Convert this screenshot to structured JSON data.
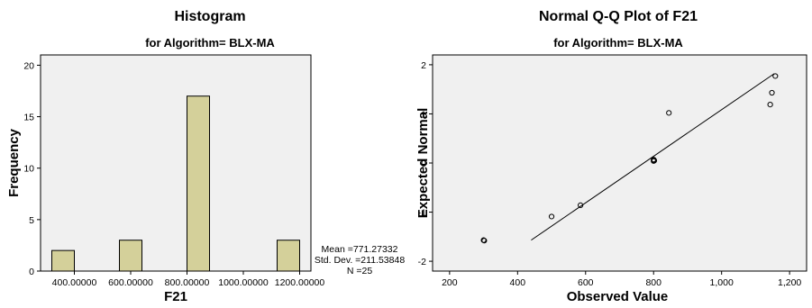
{
  "chart_data": [
    {
      "type": "bar",
      "title": "Histogram",
      "subtitle": "for Algorithm= BLX-MA",
      "xlabel": "F21",
      "ylabel": "Frequency",
      "bins": [
        {
          "from": 320,
          "to": 400,
          "count": 2
        },
        {
          "from": 400,
          "to": 480,
          "count": 0
        },
        {
          "from": 480,
          "to": 560,
          "count": 0
        },
        {
          "from": 560,
          "to": 640,
          "count": 3
        },
        {
          "from": 640,
          "to": 720,
          "count": 0
        },
        {
          "from": 720,
          "to": 800,
          "count": 0
        },
        {
          "from": 800,
          "to": 880,
          "count": 17
        },
        {
          "from": 880,
          "to": 960,
          "count": 0
        },
        {
          "from": 960,
          "to": 1040,
          "count": 0
        },
        {
          "from": 1040,
          "to": 1120,
          "count": 0
        },
        {
          "from": 1120,
          "to": 1200,
          "count": 3
        }
      ],
      "xlim": [
        280,
        1240
      ],
      "ylim": [
        0,
        21
      ],
      "x_ticks": [
        {
          "value": 400,
          "label": "400.00000"
        },
        {
          "value": 600,
          "label": "600.00000"
        },
        {
          "value": 800,
          "label": "800.00000"
        },
        {
          "value": 1000,
          "label": "1000.00000"
        },
        {
          "value": 1200,
          "label": "1200.00000"
        }
      ],
      "y_ticks": [
        {
          "value": 0,
          "label": "0"
        },
        {
          "value": 5,
          "label": "5"
        },
        {
          "value": 10,
          "label": "10"
        },
        {
          "value": 15,
          "label": "15"
        },
        {
          "value": 20,
          "label": "20"
        }
      ],
      "stats": [
        "Mean =771.27332",
        "Std. Dev. =211.53848",
        "N =25"
      ],
      "bar_color": "#d4d09a",
      "plot_background": "#f0f0f0",
      "grid": false
    },
    {
      "type": "scatter",
      "title": "Normal Q-Q Plot of F21",
      "subtitle": "for Algorithm= BLX-MA",
      "xlabel": "Observed Value",
      "ylabel": "Expected Normal",
      "points": [
        {
          "x": 300,
          "y": -1.57
        },
        {
          "x": 302,
          "y": -1.58
        },
        {
          "x": 500,
          "y": -1.09
        },
        {
          "x": 585,
          "y": -0.86
        },
        {
          "x": 800,
          "y": 0.04
        },
        {
          "x": 801,
          "y": 0.06
        },
        {
          "x": 802,
          "y": 0.05
        },
        {
          "x": 800,
          "y": 0.07
        },
        {
          "x": 845,
          "y": 1.02
        },
        {
          "x": 1143,
          "y": 1.19
        },
        {
          "x": 1148,
          "y": 1.43
        },
        {
          "x": 1158,
          "y": 1.77
        }
      ],
      "reference_line": [
        {
          "x": 440,
          "y": -1.57
        },
        {
          "x": 1155,
          "y": 1.82
        }
      ],
      "xlim": [
        150,
        1250
      ],
      "ylim": [
        -2.2,
        2.2
      ],
      "x_ticks": [
        {
          "value": 200,
          "label": "200"
        },
        {
          "value": 400,
          "label": "400"
        },
        {
          "value": 600,
          "label": "600"
        },
        {
          "value": 800,
          "label": "800"
        },
        {
          "value": 1000,
          "label": "1,000"
        },
        {
          "value": 1200,
          "label": "1,200"
        }
      ],
      "y_ticks": [
        {
          "value": -2,
          "label": "-2"
        },
        {
          "value": -1,
          "label": "-1"
        },
        {
          "value": 0,
          "label": "0"
        },
        {
          "value": 1,
          "label": "1"
        },
        {
          "value": 2,
          "label": "2"
        }
      ],
      "plot_background": "#f0f0f0",
      "grid": false
    }
  ]
}
